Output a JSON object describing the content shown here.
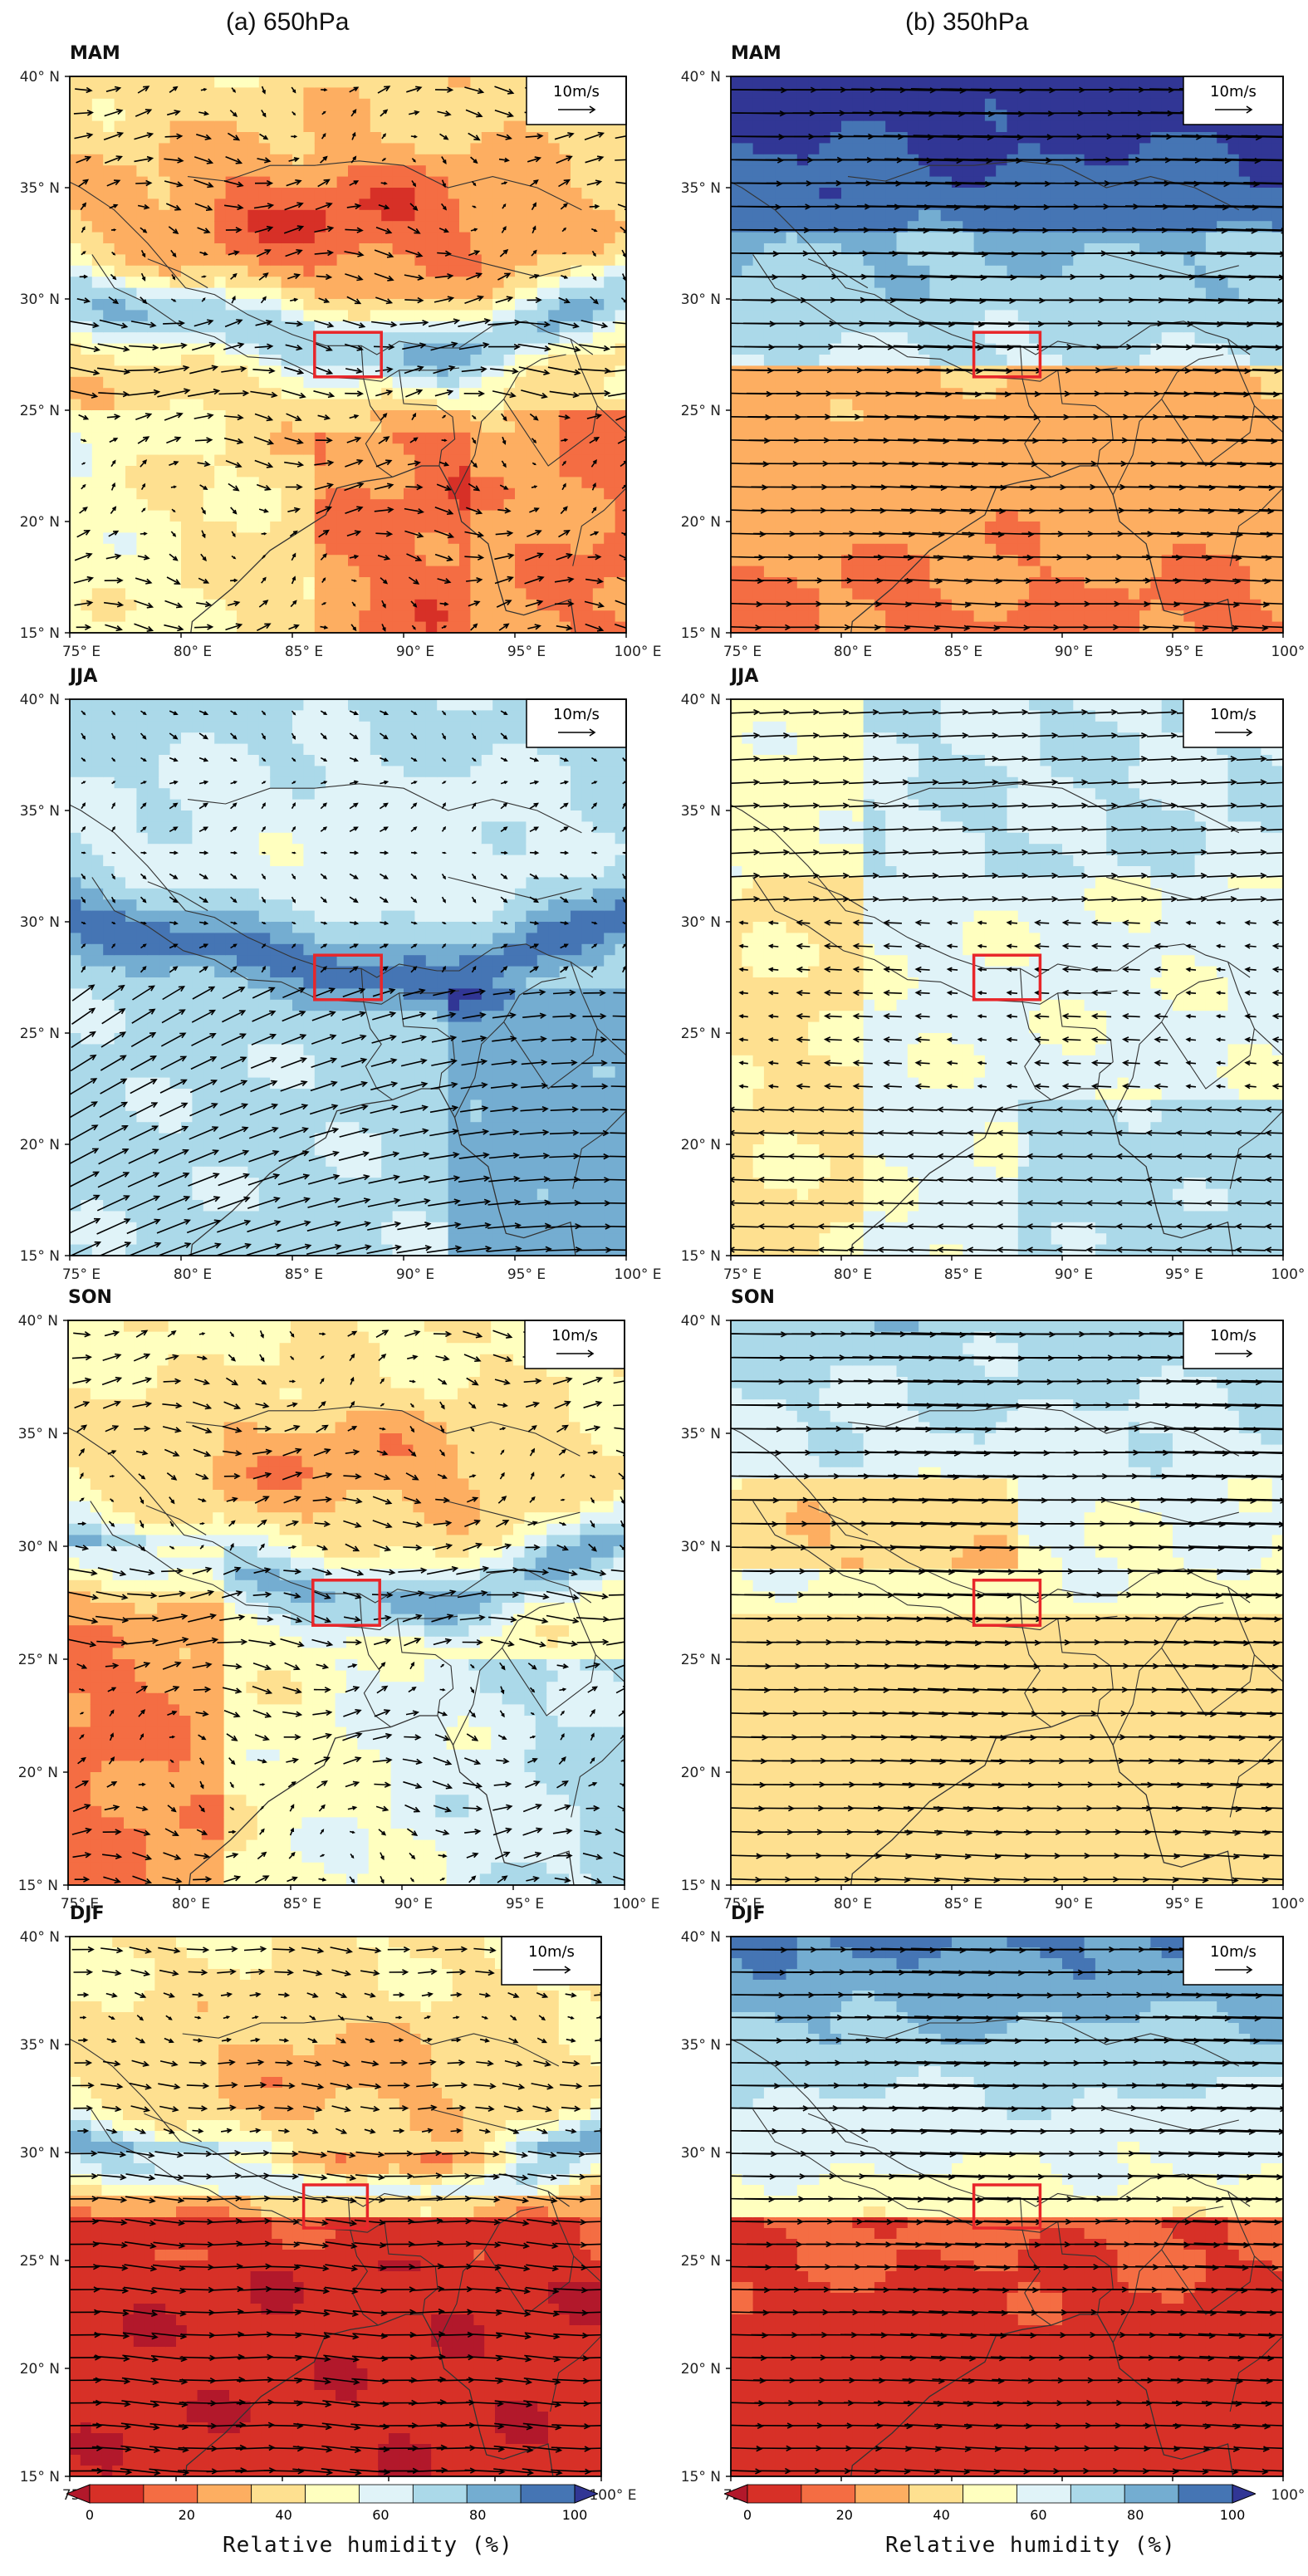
{
  "figure": {
    "column_titles": [
      "(a) 650hPa",
      "(b) 350hPa"
    ],
    "seasons": [
      "MAM",
      "JJA",
      "SON",
      "DJF"
    ],
    "lat_ticks": [
      "40° N",
      "35° N",
      "30° N",
      "25° N",
      "20° N",
      "15° N"
    ],
    "lon_ticks": [
      "75° E",
      "80° E",
      "85° E",
      "90° E",
      "95° E",
      "100° E"
    ],
    "reference_vector_label": "10m/s",
    "colorbar": {
      "title": "Relative humidity (%)",
      "tick_labels": [
        "0",
        "20",
        "40",
        "60",
        "80",
        "100"
      ],
      "colors": [
        "#b2182b",
        "#d73027",
        "#f46d43",
        "#fdae61",
        "#fee090",
        "#ffffbf",
        "#e0f3f8",
        "#abd9e9",
        "#74add1",
        "#4575b4",
        "#313695"
      ]
    },
    "study_box": {
      "lon": [
        86,
        89
      ],
      "lat": [
        26.5,
        28.5
      ],
      "color": "#e8262a"
    }
  }
}
